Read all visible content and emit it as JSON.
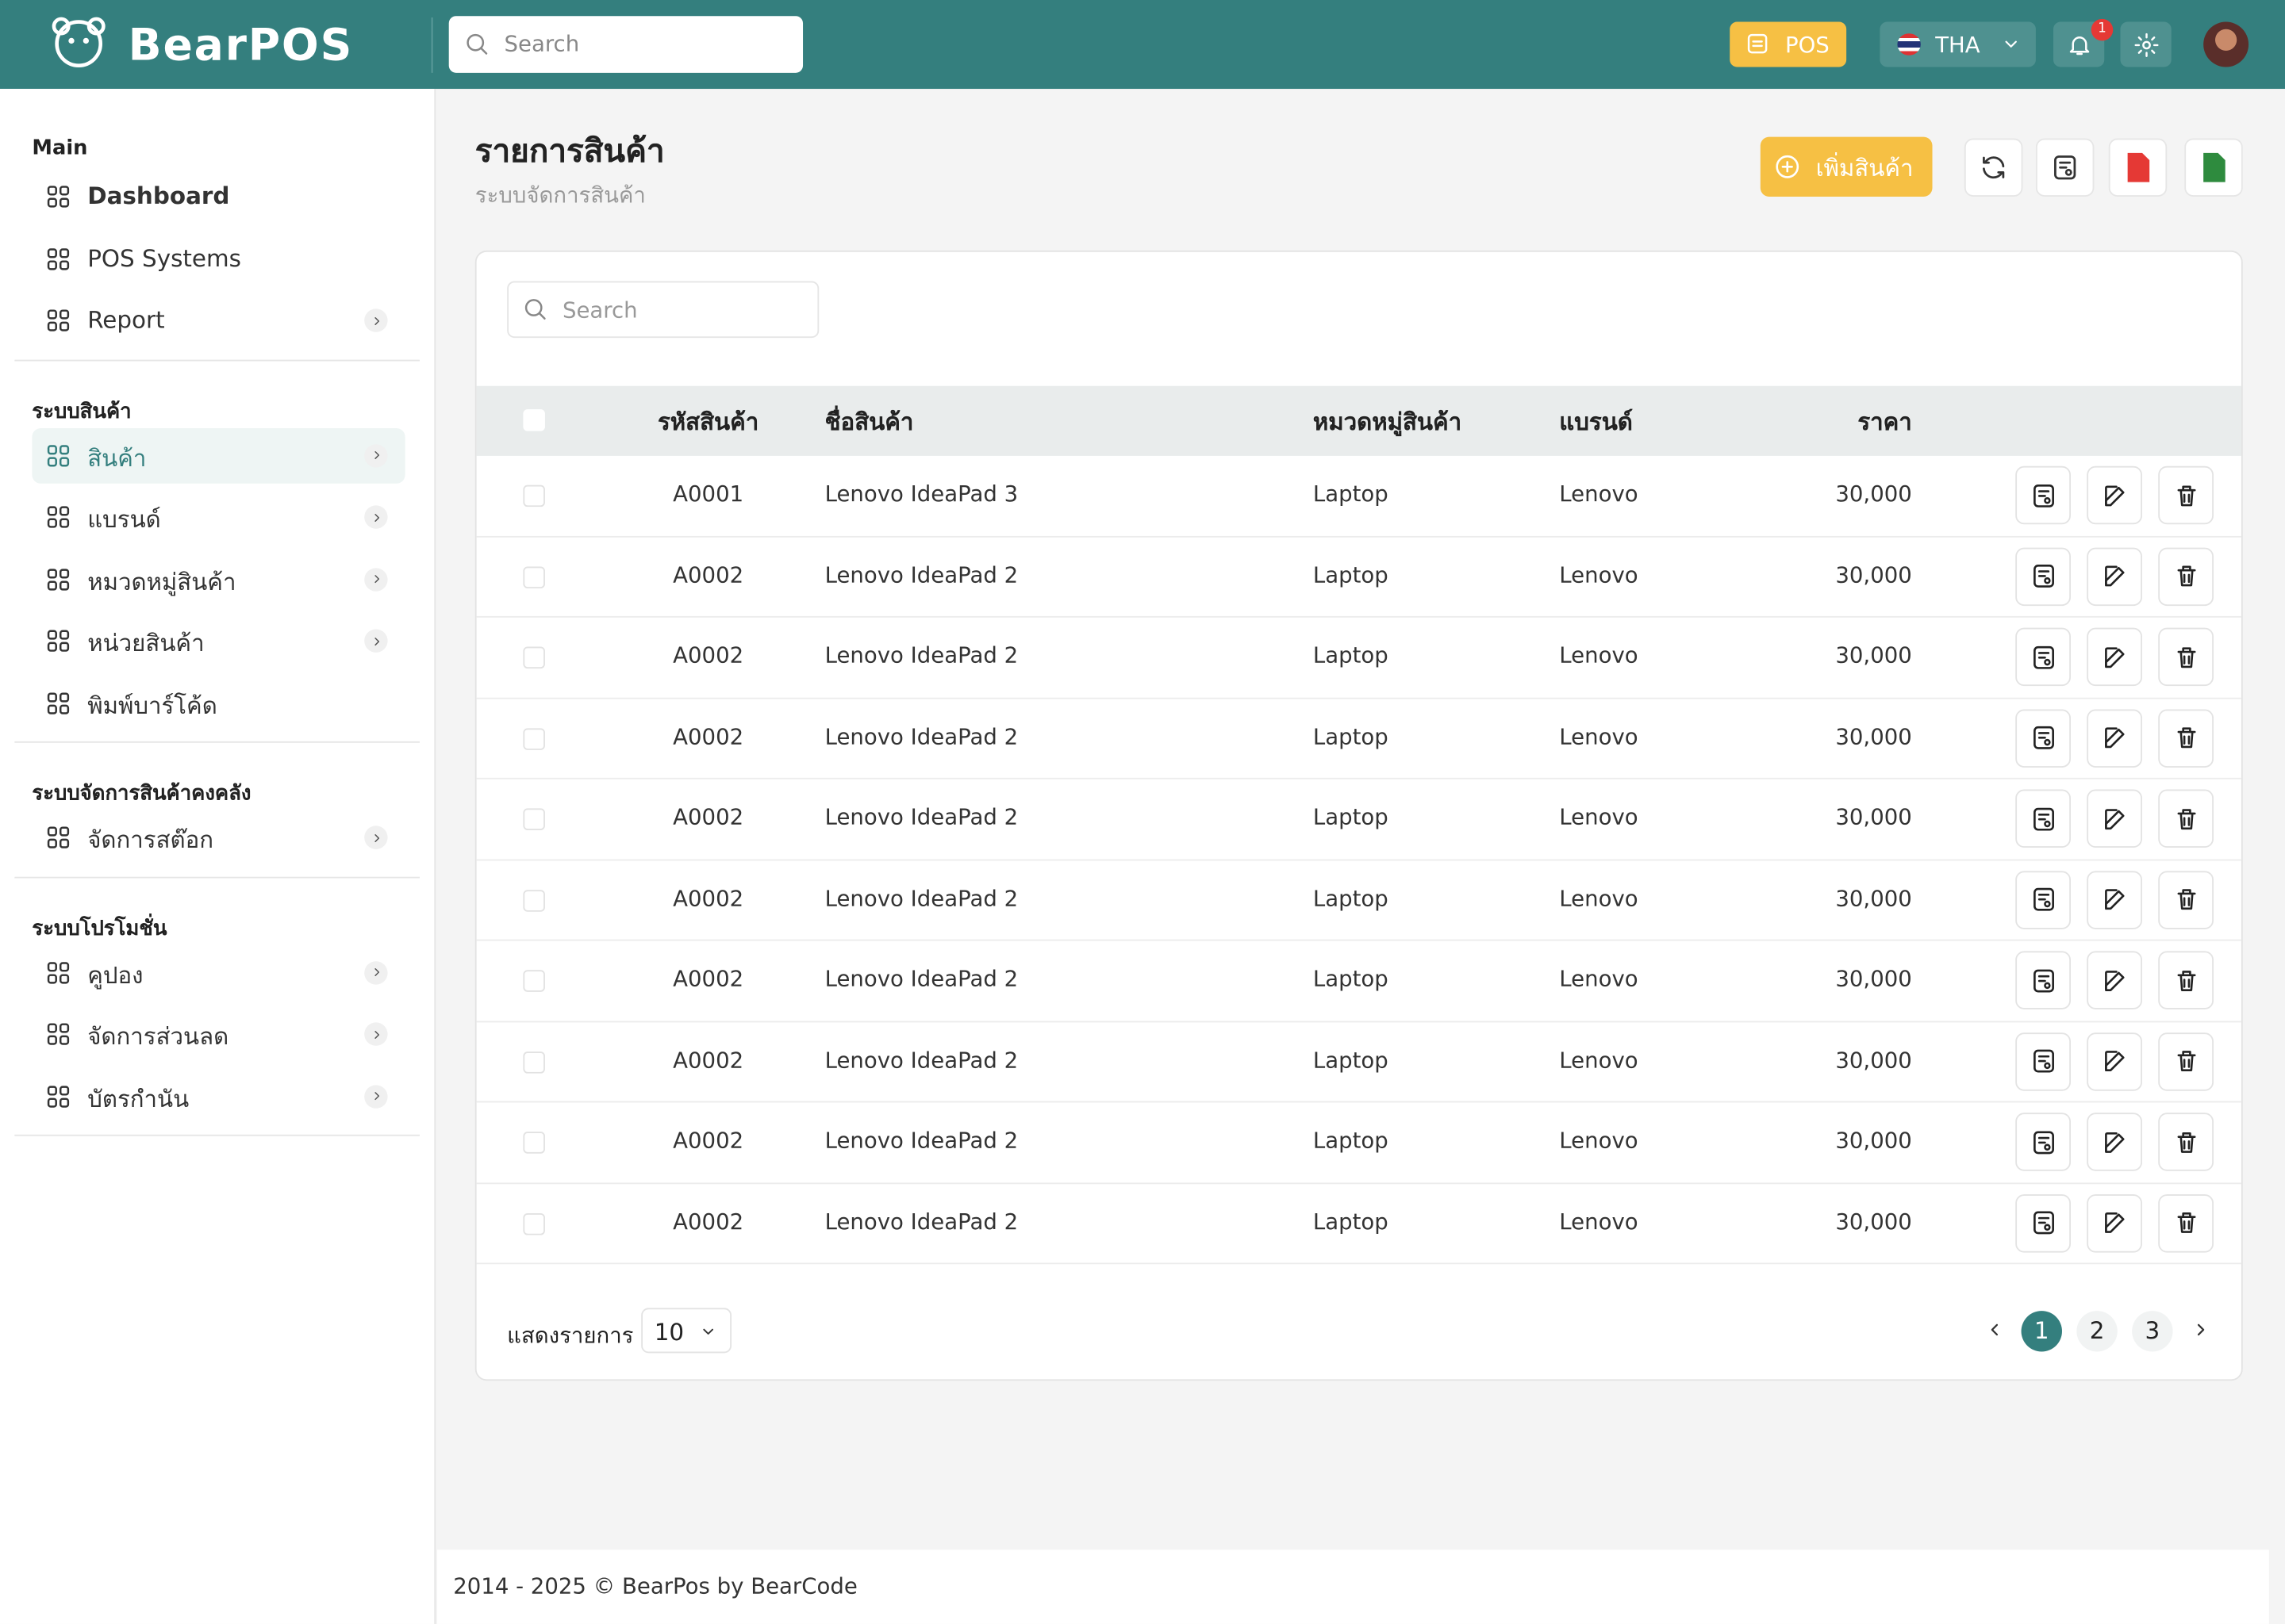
{
  "header": {
    "logo": "BearPOS",
    "search_placeholder": "Search",
    "pos_button": "POS",
    "language": "THA",
    "notification_count": "1"
  },
  "sidebar": {
    "sections": [
      {
        "title": "Main",
        "items": [
          {
            "label": "Dashboard",
            "arrow": false,
            "active": false,
            "bold": true
          },
          {
            "label": "POS Systems",
            "arrow": false,
            "active": false
          },
          {
            "label": "Report",
            "arrow": true,
            "active": false
          }
        ]
      },
      {
        "title": "ระบบสินค้า",
        "items": [
          {
            "label": "สินค้า",
            "arrow": true,
            "active": true
          },
          {
            "label": "แบรนด์",
            "arrow": true,
            "active": false
          },
          {
            "label": "หมวดหมู่สินค้า",
            "arrow": true,
            "active": false
          },
          {
            "label": "หน่วยสินค้า",
            "arrow": true,
            "active": false
          },
          {
            "label": "พิมพ์บาร์โค้ด",
            "arrow": false,
            "active": false
          }
        ]
      },
      {
        "title": "ระบบจัดการสินค้าคงคลัง",
        "items": [
          {
            "label": "จัดการสต๊อก",
            "arrow": true,
            "active": false
          }
        ]
      },
      {
        "title": "ระบบโปรโมชั่น",
        "items": [
          {
            "label": "คูปอง",
            "arrow": true,
            "active": false
          },
          {
            "label": "จัดการส่วนลด",
            "arrow": true,
            "active": false
          },
          {
            "label": "บัตรกำนัน",
            "arrow": true,
            "active": false
          }
        ]
      }
    ]
  },
  "page": {
    "title": "รายการสินค้า",
    "subtitle": "ระบบจัดการสินค้า",
    "add_button": "เพิ่มสินค้า"
  },
  "table": {
    "search_placeholder": "Search",
    "columns": [
      "รหัสสินค้า",
      "ชื่อสินค้า",
      "หมวดหมู่สินค้า",
      "แบรนด์",
      "ราคา"
    ],
    "rows": [
      [
        "A0001",
        "Lenovo IdeaPad 3",
        "Laptop",
        "Lenovo",
        "30,000"
      ],
      [
        "A0002",
        "Lenovo IdeaPad 2",
        "Laptop",
        "Lenovo",
        "30,000"
      ],
      [
        "A0002",
        "Lenovo IdeaPad 2",
        "Laptop",
        "Lenovo",
        "30,000"
      ],
      [
        "A0002",
        "Lenovo IdeaPad 2",
        "Laptop",
        "Lenovo",
        "30,000"
      ],
      [
        "A0002",
        "Lenovo IdeaPad 2",
        "Laptop",
        "Lenovo",
        "30,000"
      ],
      [
        "A0002",
        "Lenovo IdeaPad 2",
        "Laptop",
        "Lenovo",
        "30,000"
      ],
      [
        "A0002",
        "Lenovo IdeaPad 2",
        "Laptop",
        "Lenovo",
        "30,000"
      ],
      [
        "A0002",
        "Lenovo IdeaPad 2",
        "Laptop",
        "Lenovo",
        "30,000"
      ],
      [
        "A0002",
        "Lenovo IdeaPad 2",
        "Laptop",
        "Lenovo",
        "30,000"
      ],
      [
        "A0002",
        "Lenovo IdeaPad 2",
        "Laptop",
        "Lenovo",
        "30,000"
      ]
    ]
  },
  "pagination": {
    "show_label": "แสดงรายการ",
    "page_size": "10",
    "pages": [
      "1",
      "2",
      "3"
    ],
    "current_page": 1
  },
  "footer": {
    "copyright": "2014 - 2025 © BearPos by BearCode"
  }
}
